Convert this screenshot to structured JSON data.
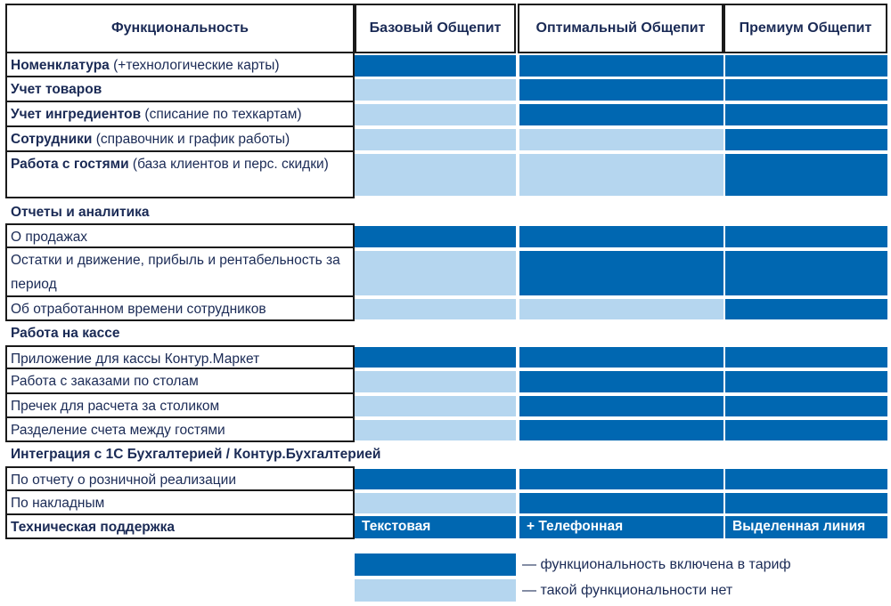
{
  "header": {
    "feature_col": "Функциональность",
    "plans": [
      "Базовый Общепит",
      "Оптимальный Общепит",
      "Премиум Общепит"
    ]
  },
  "rows": {
    "r1": {
      "bold": "Номенклатура",
      "rest": " (+технологические карты)",
      "cells": [
        "on",
        "on",
        "on"
      ]
    },
    "r2": {
      "bold": "Учет товаров",
      "rest": "",
      "cells": [
        "off",
        "on",
        "on"
      ]
    },
    "r3": {
      "bold": "Учет ингредиентов",
      "rest": " (списание по техкартам)",
      "cells": [
        "off",
        "on",
        "on"
      ]
    },
    "r4": {
      "bold": "Сотрудники",
      "rest": " (справочник и график работы)",
      "cells": [
        "off",
        "off",
        "on"
      ]
    },
    "r5": {
      "bold": "Работа с гостями",
      "rest": " (база клиентов и перс. скидки)",
      "cells": [
        "off",
        "off",
        "on"
      ]
    },
    "s1": "Отчеты и аналитика",
    "r6": {
      "text": "О продажах",
      "cells": [
        "on",
        "on",
        "on"
      ]
    },
    "r7": {
      "text": "Остатки и движение, прибыль и рентабельность за период",
      "cells": [
        "off",
        "on",
        "on"
      ]
    },
    "r8": {
      "text": "Об отработанном времени сотрудников",
      "cells": [
        "off",
        "off",
        "on"
      ]
    },
    "s2": "Работа на кассе",
    "r9": {
      "text": "Приложение для кассы Контур.Маркет",
      "cells": [
        "on",
        "on",
        "on"
      ]
    },
    "r10": {
      "text": "Работа с заказами по столам",
      "cells": [
        "off",
        "on",
        "on"
      ]
    },
    "r11": {
      "text": "Пречек для расчета за столиком",
      "cells": [
        "off",
        "on",
        "on"
      ]
    },
    "r12": {
      "text": "Разделение счета между гостями",
      "cells": [
        "off",
        "on",
        "on"
      ]
    },
    "s3": "Интеграция с 1С Бухгалтерией / Контур.Бухгалтерией",
    "r13": {
      "text": "По отчету о розничной реализации",
      "cells": [
        "on",
        "on",
        "on"
      ]
    },
    "r14": {
      "text": "По накладным",
      "cells": [
        "off",
        "on",
        "on"
      ]
    },
    "support": {
      "label": "Техническая поддержка",
      "values": [
        "Текстовая",
        "+ Телефонная",
        "Выделенная линия"
      ]
    }
  },
  "legend": {
    "included": "— функциональность включена в тариф",
    "absent": "— такой функциональности нет"
  },
  "colors": {
    "included": "#0067b1",
    "absent": "#b5d6ef",
    "text": "#1a2a55"
  }
}
